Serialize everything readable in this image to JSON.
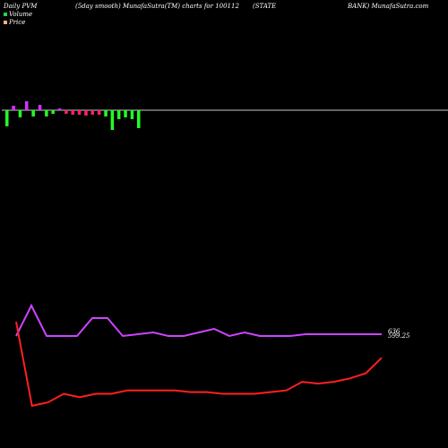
{
  "header": {
    "left": "Daily PVM",
    "center": "(5day smooth) MunafaSutra(TM) charts for 100112",
    "right1": "(STATE",
    "right2": "BANK) MunafaSutra.com"
  },
  "legend": {
    "volume_label": "Volume",
    "price_label": "Price",
    "volume_color": "#1fd65a",
    "price_color": "#ffb080"
  },
  "chart_data": {
    "type": "line",
    "colors": {
      "volume_up": "#22ff22",
      "volume_down": "#ff2266",
      "volume_other": "#d033ff",
      "pvm_line": "#ff2020",
      "price_line": "#cc44ff",
      "baseline": "#c8c8c8"
    },
    "volume_bars": [
      {
        "v": -18,
        "c": "volume_up"
      },
      {
        "v": 5,
        "c": "volume_other"
      },
      {
        "v": -8,
        "c": "volume_up"
      },
      {
        "v": 10,
        "c": "volume_other"
      },
      {
        "v": -7,
        "c": "volume_up"
      },
      {
        "v": 6,
        "c": "volume_other"
      },
      {
        "v": -7,
        "c": "volume_up"
      },
      {
        "v": -4,
        "c": "volume_up"
      },
      {
        "v": 2,
        "c": "volume_other"
      },
      {
        "v": -4,
        "c": "volume_down"
      },
      {
        "v": -5,
        "c": "volume_down"
      },
      {
        "v": -5,
        "c": "volume_down"
      },
      {
        "v": -6,
        "c": "volume_down"
      },
      {
        "v": -5,
        "c": "volume_down"
      },
      {
        "v": -5,
        "c": "volume_down"
      },
      {
        "v": -7,
        "c": "volume_up"
      },
      {
        "v": -22,
        "c": "volume_up"
      },
      {
        "v": -10,
        "c": "volume_up"
      },
      {
        "v": -8,
        "c": "volume_up"
      },
      {
        "v": -10,
        "c": "volume_up"
      },
      {
        "v": -20,
        "c": "volume_up"
      }
    ],
    "price_series": {
      "values": [
        635,
        652,
        635,
        635,
        635,
        645,
        645,
        635,
        636,
        637,
        635,
        635,
        637,
        639,
        635,
        637,
        635,
        635,
        635,
        636,
        636,
        636,
        636,
        636,
        636
      ],
      "end_label": "636"
    },
    "pvm_series": {
      "values": [
        80,
        31,
        33,
        38,
        36,
        38,
        38,
        40,
        40,
        40,
        40,
        39,
        39,
        38,
        38,
        38,
        39,
        40,
        45,
        44,
        45,
        47,
        50,
        59
      ],
      "end_label": "599.25"
    }
  }
}
